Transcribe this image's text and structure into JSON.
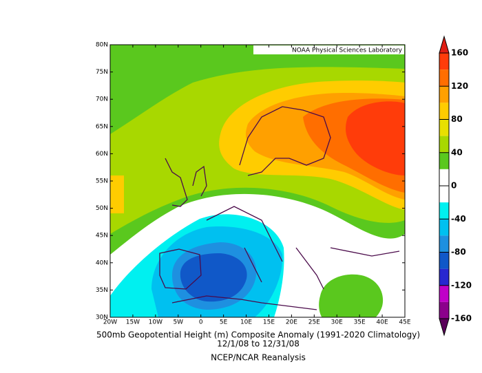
{
  "map": {
    "credit": "NOAA Physical Sciences Laboratory",
    "lon_labels": [
      "20W",
      "15W",
      "10W",
      "5W",
      "0",
      "5E",
      "10E",
      "15E",
      "20E",
      "25E",
      "30E",
      "35E",
      "40E",
      "45E"
    ],
    "lat_labels": [
      "80N",
      "75N",
      "70N",
      "65N",
      "60N",
      "55N",
      "50N",
      "45N",
      "40N",
      "35N",
      "30N"
    ]
  },
  "colorbar": {
    "levels": [
      160,
      120,
      80,
      40,
      0,
      -40,
      -80,
      -120,
      -160
    ],
    "colors": [
      "#e01e14",
      "#ff3c0a",
      "#ff6e00",
      "#ffa000",
      "#ffcc00",
      "#e8e000",
      "#a8d800",
      "#5ac81e",
      "#ffffff",
      "#ffffff",
      "#00f0f0",
      "#00c0f0",
      "#1e90e0",
      "#1058c8",
      "#2828d0",
      "#c000c8",
      "#8c008c",
      "#5a005a"
    ]
  },
  "caption": {
    "line1": "500mb Geopotential Height (m) Composite Anomaly (1991-2020 Climatology)",
    "line2": "12/1/08  to 12/31/08",
    "line3": "NCEP/NCAR Reanalysis"
  }
}
